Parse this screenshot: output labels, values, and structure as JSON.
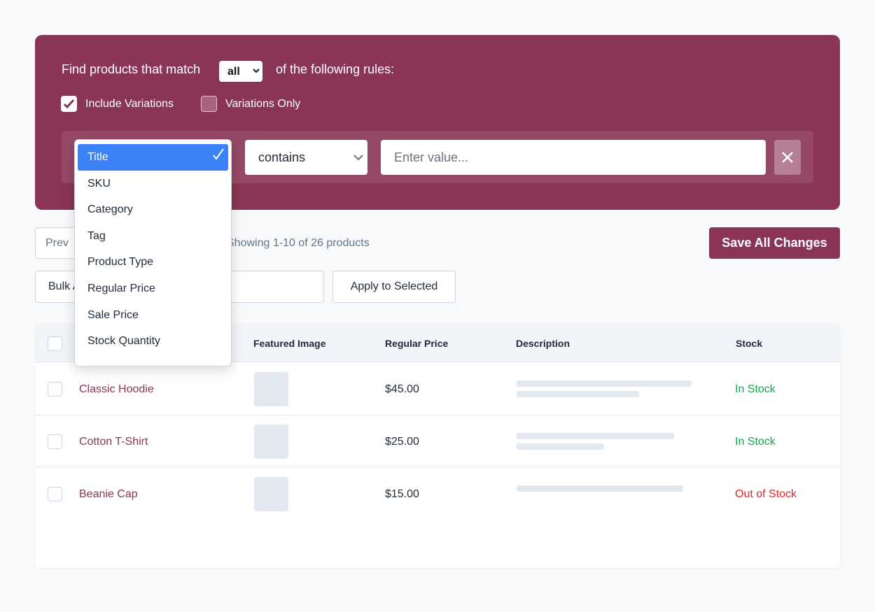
{
  "filter": {
    "prefix": "Find products that match",
    "match": "all",
    "suffix": "of the following rules:",
    "include_variations": "Include Variations",
    "variations_only": "Variations Only",
    "field_options": [
      "Title",
      "SKU",
      "Category",
      "Tag",
      "Product Type",
      "Regular Price",
      "Sale Price",
      "Stock Quantity"
    ],
    "operator": "contains",
    "value_placeholder": "Enter value..."
  },
  "toolbar": {
    "prev": "Prev",
    "showing": "Showing 1-10 of 26 products",
    "save": "Save All Changes",
    "bulk": "Bulk Actions",
    "apply": "Apply to Selected"
  },
  "table": {
    "headers": [
      "Featured Image",
      "Regular Price",
      "Description",
      "Stock"
    ],
    "rows": [
      {
        "name": "Classic Hoodie",
        "price": "$45.00",
        "stock": "In Stock"
      },
      {
        "name": "Cotton T-Shirt",
        "price": "$25.00",
        "stock": "In Stock"
      },
      {
        "name": "Beanie Cap",
        "price": "$15.00",
        "stock": "Out of Stock"
      }
    ]
  }
}
